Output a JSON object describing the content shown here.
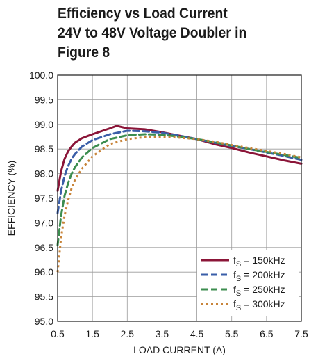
{
  "chart_data": {
    "type": "line",
    "title_lines": [
      "Efficiency vs Load Current",
      "24V to 48V Voltage Doubler in",
      "Figure 8"
    ],
    "xlabel": "LOAD CURRENT (A)",
    "ylabel": "EFFICIENCY (%)",
    "xlim": [
      0.5,
      7.5
    ],
    "ylim": [
      95.0,
      100.0
    ],
    "x_ticks": [
      "0.5",
      "1.5",
      "2.5",
      "3.5",
      "4.5",
      "5.5",
      "6.5",
      "7.5"
    ],
    "y_ticks": [
      "95.0",
      "95.5",
      "96.0",
      "96.5",
      "97.0",
      "97.5",
      "98.0",
      "98.5",
      "99.0",
      "99.5",
      "100.0"
    ],
    "grid": true,
    "legend_position": "bottom-right",
    "series": [
      {
        "name_main": "f",
        "name_sub": "S",
        "name_rest": " = 150kHz",
        "color": "#8b1538",
        "style": "solid",
        "points": [
          [
            0.5,
            97.65
          ],
          [
            0.6,
            98.05
          ],
          [
            0.7,
            98.3
          ],
          [
            0.8,
            98.45
          ],
          [
            0.9,
            98.55
          ],
          [
            1.0,
            98.63
          ],
          [
            1.2,
            98.72
          ],
          [
            1.5,
            98.8
          ],
          [
            2.0,
            98.92
          ],
          [
            2.2,
            98.97
          ],
          [
            2.5,
            98.92
          ],
          [
            3.0,
            98.9
          ],
          [
            3.5,
            98.84
          ],
          [
            4.0,
            98.77
          ],
          [
            4.5,
            98.7
          ],
          [
            5.0,
            98.6
          ],
          [
            5.5,
            98.52
          ],
          [
            6.0,
            98.43
          ],
          [
            6.5,
            98.35
          ],
          [
            7.0,
            98.27
          ],
          [
            7.5,
            98.2
          ]
        ]
      },
      {
        "name_main": "f",
        "name_sub": "S",
        "name_rest": " = 200kHz",
        "color": "#3a5ea8",
        "style": "dashed",
        "points": [
          [
            0.5,
            97.2
          ],
          [
            0.6,
            97.65
          ],
          [
            0.7,
            97.95
          ],
          [
            0.8,
            98.15
          ],
          [
            0.9,
            98.3
          ],
          [
            1.0,
            98.4
          ],
          [
            1.2,
            98.55
          ],
          [
            1.5,
            98.68
          ],
          [
            2.0,
            98.8
          ],
          [
            2.5,
            98.87
          ],
          [
            3.0,
            98.86
          ],
          [
            3.5,
            98.83
          ],
          [
            4.0,
            98.77
          ],
          [
            4.5,
            98.7
          ],
          [
            5.0,
            98.63
          ],
          [
            5.5,
            98.56
          ],
          [
            6.0,
            98.5
          ],
          [
            6.5,
            98.43
          ],
          [
            7.0,
            98.36
          ],
          [
            7.5,
            98.28
          ]
        ]
      },
      {
        "name_main": "f",
        "name_sub": "S",
        "name_rest": " = 250kHz",
        "color": "#3c8d4f",
        "style": "dashed",
        "points": [
          [
            0.5,
            96.55
          ],
          [
            0.6,
            97.15
          ],
          [
            0.7,
            97.55
          ],
          [
            0.8,
            97.8
          ],
          [
            0.9,
            98.0
          ],
          [
            1.0,
            98.13
          ],
          [
            1.2,
            98.33
          ],
          [
            1.5,
            98.52
          ],
          [
            2.0,
            98.7
          ],
          [
            2.5,
            98.78
          ],
          [
            3.0,
            98.8
          ],
          [
            3.5,
            98.79
          ],
          [
            4.0,
            98.75
          ],
          [
            4.5,
            98.7
          ],
          [
            5.0,
            98.64
          ],
          [
            5.5,
            98.57
          ],
          [
            6.0,
            98.5
          ],
          [
            6.5,
            98.44
          ],
          [
            7.0,
            98.38
          ],
          [
            7.5,
            98.32
          ]
        ]
      },
      {
        "name_main": "f",
        "name_sub": "S",
        "name_rest": " = 300kHz",
        "color": "#c8843a",
        "style": "dotted",
        "points": [
          [
            0.5,
            96.0
          ],
          [
            0.6,
            96.7
          ],
          [
            0.7,
            97.15
          ],
          [
            0.8,
            97.45
          ],
          [
            0.9,
            97.7
          ],
          [
            1.0,
            97.88
          ],
          [
            1.2,
            98.1
          ],
          [
            1.5,
            98.35
          ],
          [
            2.0,
            98.6
          ],
          [
            2.5,
            98.7
          ],
          [
            3.0,
            98.74
          ],
          [
            3.5,
            98.75
          ],
          [
            4.0,
            98.73
          ],
          [
            4.5,
            98.7
          ],
          [
            5.0,
            98.65
          ],
          [
            5.5,
            98.58
          ],
          [
            6.0,
            98.52
          ],
          [
            6.5,
            98.46
          ],
          [
            7.0,
            98.4
          ],
          [
            7.5,
            98.33
          ]
        ]
      }
    ]
  }
}
